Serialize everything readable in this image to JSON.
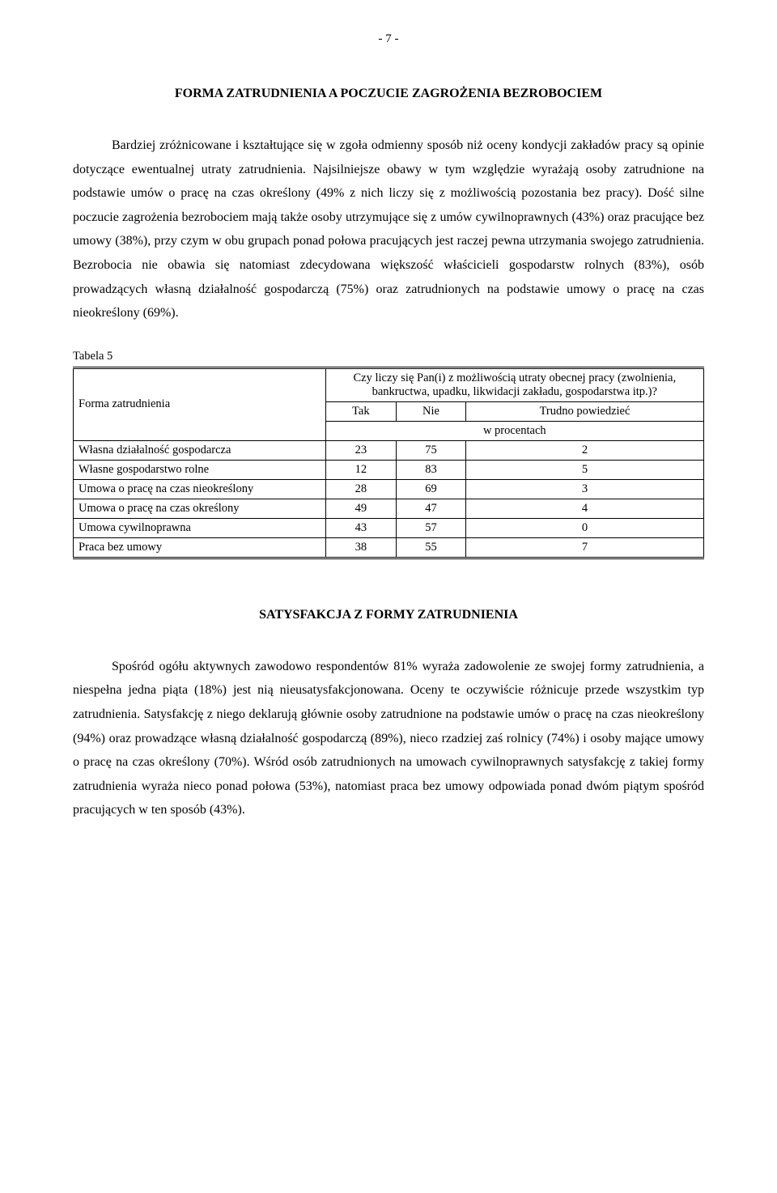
{
  "page_number": "- 7 -",
  "section1": {
    "title": "FORMA ZATRUDNIENIA A POCZUCIE ZAGROŻENIA BEZROBOCIEM",
    "paragraph": "Bardziej zróżnicowane i kształtujące się w zgoła odmienny sposób niż oceny kondycji zakładów pracy są opinie dotyczące ewentualnej utraty zatrudnienia. Najsilniejsze obawy w tym względzie wyrażają osoby zatrudnione na podstawie umów o pracę na czas określony (49% z nich liczy się z możliwością pozostania bez pracy). Dość silne poczucie zagrożenia bezrobociem mają także osoby utrzymujące się z umów cywilnoprawnych (43%) oraz pracujące bez umowy (38%), przy czym w obu grupach ponad połowa pracujących jest raczej pewna utrzymania swojego zatrudnienia. Bezrobocia nie obawia się natomiast zdecydowana większość właścicieli gospodarstw rolnych (83%), osób prowadzących własną działalność gospodarczą (75%) oraz zatrudnionych na podstawie umowy o pracę na czas nieokreślony (69%)."
  },
  "table5": {
    "caption": "Tabela 5",
    "row_header": "Forma zatrudnienia",
    "question": "Czy liczy się Pan(i) z możliwością utraty obecnej pracy (zwolnienia, bankructwa, upadku, likwidacji zakładu, gospodarstwa itp.)?",
    "cols": [
      "Tak",
      "Nie",
      "Trudno powiedzieć"
    ],
    "unit": "w procentach",
    "rows": [
      {
        "label": "Własna działalność gospodarcza",
        "vals": [
          "23",
          "75",
          "2"
        ]
      },
      {
        "label": "Własne gospodarstwo rolne",
        "vals": [
          "12",
          "83",
          "5"
        ]
      },
      {
        "label": "Umowa o pracę na czas nieokreślony",
        "vals": [
          "28",
          "69",
          "3"
        ]
      },
      {
        "label": "Umowa o pracę na czas określony",
        "vals": [
          "49",
          "47",
          "4"
        ]
      },
      {
        "label": "Umowa cywilnoprawna",
        "vals": [
          "43",
          "57",
          "0"
        ]
      },
      {
        "label": "Praca bez umowy",
        "vals": [
          "38",
          "55",
          "7"
        ]
      }
    ]
  },
  "section2": {
    "title": "SATYSFAKCJA Z FORMY ZATRUDNIENIA",
    "paragraph": "Spośród ogółu aktywnych zawodowo respondentów 81% wyraża zadowolenie ze swojej formy zatrudnienia, a niespełna jedna piąta (18%) jest nią nieusatysfakcjonowana. Oceny te oczywiście różnicuje przede wszystkim typ zatrudnienia. Satysfakcję z niego deklarują głównie osoby zatrudnione na podstawie umów o pracę na czas nieokreślony (94%) oraz prowadzące własną działalność gospodarczą (89%), nieco rzadziej zaś rolnicy (74%) i osoby mające umowy o pracę na czas określony (70%). Wśród osób zatrudnionych na umowach cywilnoprawnych satysfakcję z takiej formy zatrudnienia wyraża nieco ponad połowa (53%), natomiast praca bez umowy odpowiada ponad dwóm piątym spośród pracujących w ten sposób (43%)."
  }
}
